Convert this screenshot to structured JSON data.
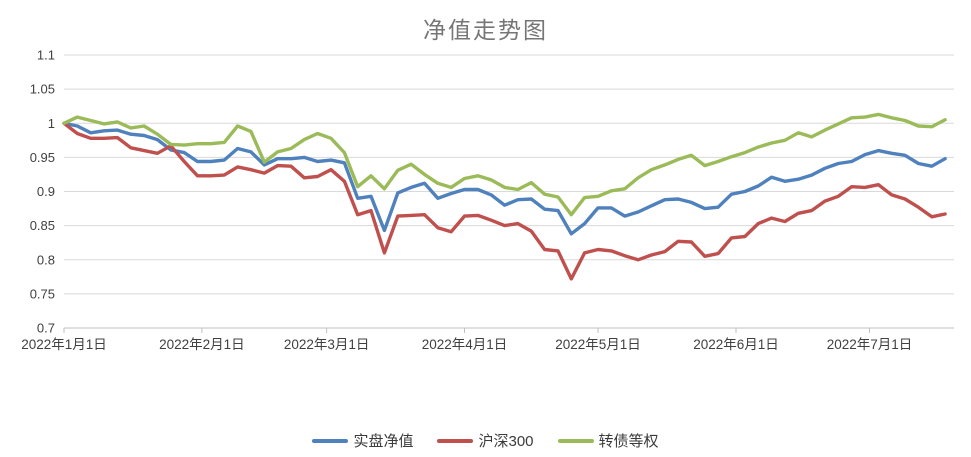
{
  "colors": {
    "grid": "#d9d9d9",
    "axis": "#bfbfbf",
    "tick_label": "#404040",
    "title": "#767676"
  },
  "chart_data": {
    "type": "line",
    "title": "净值走势图",
    "x_unit": "days since 2022-01-01",
    "xlim": [
      0,
      200
    ],
    "ylim": [
      0.7,
      1.1
    ],
    "grid": "horizontal",
    "legend_position": "bottom",
    "x_ticks": [
      {
        "d": 0,
        "label": "2022年1月1日"
      },
      {
        "d": 31,
        "label": "2022年2月1日"
      },
      {
        "d": 59,
        "label": "2022年3月1日"
      },
      {
        "d": 90,
        "label": "2022年4月1日"
      },
      {
        "d": 120,
        "label": "2022年5月1日"
      },
      {
        "d": 151,
        "label": "2022年6月1日"
      },
      {
        "d": 181,
        "label": "2022年7月1日"
      }
    ],
    "y_ticks": [
      {
        "v": 1.1,
        "label": "1.1"
      },
      {
        "v": 1.05,
        "label": "1.05"
      },
      {
        "v": 1.0,
        "label": "1"
      },
      {
        "v": 0.95,
        "label": "0.95"
      },
      {
        "v": 0.9,
        "label": "0.9"
      },
      {
        "v": 0.85,
        "label": "0.85"
      },
      {
        "v": 0.8,
        "label": "0.8"
      },
      {
        "v": 0.75,
        "label": "0.75"
      },
      {
        "v": 0.7,
        "label": "0.7"
      }
    ],
    "x": [
      0,
      3,
      6,
      9,
      12,
      15,
      18,
      21,
      24,
      27,
      30,
      33,
      36,
      39,
      42,
      45,
      48,
      51,
      54,
      57,
      60,
      63,
      66,
      69,
      72,
      75,
      78,
      81,
      84,
      87,
      90,
      93,
      96,
      99,
      102,
      105,
      108,
      111,
      114,
      117,
      120,
      123,
      126,
      129,
      132,
      135,
      138,
      141,
      144,
      147,
      150,
      153,
      156,
      159,
      162,
      165,
      168,
      171,
      174,
      177,
      180,
      183,
      186,
      189,
      192,
      195,
      198
    ],
    "series": [
      {
        "name": "实盘净值",
        "color": "#4f81bd",
        "values": [
          1.0,
          0.996,
          0.986,
          0.989,
          0.99,
          0.984,
          0.982,
          0.976,
          0.961,
          0.957,
          0.944,
          0.944,
          0.946,
          0.963,
          0.958,
          0.939,
          0.948,
          0.948,
          0.95,
          0.944,
          0.946,
          0.942,
          0.89,
          0.893,
          0.843,
          0.898,
          0.906,
          0.912,
          0.89,
          0.897,
          0.903,
          0.903,
          0.895,
          0.88,
          0.888,
          0.889,
          0.874,
          0.872,
          0.838,
          0.853,
          0.876,
          0.876,
          0.864,
          0.87,
          0.879,
          0.888,
          0.889,
          0.884,
          0.875,
          0.877,
          0.896,
          0.9,
          0.908,
          0.921,
          0.915,
          0.918,
          0.924,
          0.934,
          0.941,
          0.944,
          0.954,
          0.96,
          0.956,
          0.953,
          0.941,
          0.937,
          0.948
        ]
      },
      {
        "name": "沪深300",
        "color": "#c0504d",
        "values": [
          1.0,
          0.985,
          0.978,
          0.978,
          0.979,
          0.964,
          0.96,
          0.956,
          0.967,
          0.944,
          0.923,
          0.923,
          0.924,
          0.936,
          0.932,
          0.927,
          0.938,
          0.937,
          0.92,
          0.922,
          0.932,
          0.915,
          0.866,
          0.872,
          0.81,
          0.864,
          0.865,
          0.866,
          0.847,
          0.841,
          0.864,
          0.865,
          0.858,
          0.85,
          0.853,
          0.842,
          0.815,
          0.813,
          0.772,
          0.81,
          0.815,
          0.813,
          0.806,
          0.8,
          0.807,
          0.812,
          0.827,
          0.826,
          0.805,
          0.809,
          0.832,
          0.834,
          0.853,
          0.861,
          0.856,
          0.868,
          0.872,
          0.886,
          0.893,
          0.907,
          0.906,
          0.91,
          0.895,
          0.889,
          0.877,
          0.863,
          0.867
        ]
      },
      {
        "name": "转债等权",
        "color": "#9bbb59",
        "values": [
          1.0,
          1.009,
          1.004,
          0.999,
          1.002,
          0.993,
          0.996,
          0.984,
          0.969,
          0.968,
          0.97,
          0.97,
          0.972,
          0.996,
          0.988,
          0.943,
          0.958,
          0.963,
          0.976,
          0.985,
          0.978,
          0.957,
          0.907,
          0.923,
          0.904,
          0.931,
          0.94,
          0.925,
          0.912,
          0.906,
          0.919,
          0.923,
          0.917,
          0.906,
          0.903,
          0.913,
          0.896,
          0.892,
          0.866,
          0.891,
          0.893,
          0.901,
          0.904,
          0.92,
          0.932,
          0.939,
          0.947,
          0.953,
          0.938,
          0.944,
          0.951,
          0.957,
          0.965,
          0.971,
          0.975,
          0.986,
          0.98,
          0.99,
          0.999,
          1.008,
          1.009,
          1.013,
          1.008,
          1.004,
          0.996,
          0.995,
          1.005
        ]
      }
    ]
  }
}
